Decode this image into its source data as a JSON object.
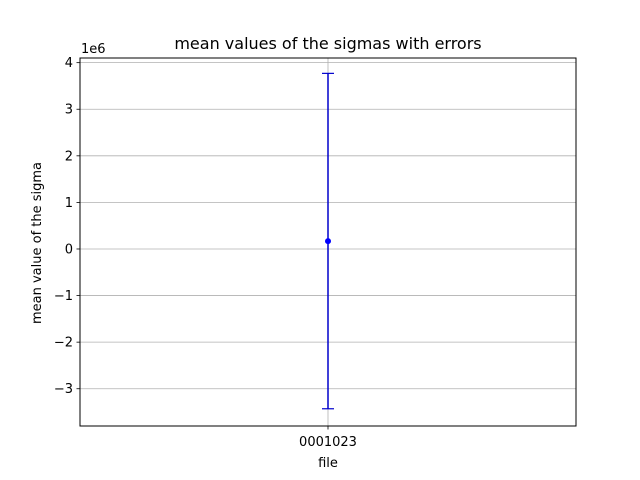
{
  "chart_data": {
    "type": "scatter",
    "title": "mean values of the sigmas with errors",
    "xlabel": "file",
    "ylabel": "mean value of the sigma",
    "scale_label": "1e6",
    "categories": [
      "0001023"
    ],
    "series": [
      {
        "values": [
          0.17
        ],
        "error_low": [
          3.6
        ],
        "error_high": [
          3.6
        ]
      }
    ],
    "y_scale": 1000000,
    "ylim": [
      -3.8,
      4.1
    ],
    "y_ticks": [
      -3,
      -2,
      -1,
      0,
      1,
      2,
      3,
      4
    ],
    "y_tick_labels": [
      "−3",
      "−2",
      "−1",
      "0",
      "1",
      "2",
      "3",
      "4"
    ],
    "grid": true,
    "colors": {
      "series": "#0000ff",
      "errorbar": "#0000cc",
      "grid": "#b0b0b0",
      "axes": "#000000"
    }
  }
}
